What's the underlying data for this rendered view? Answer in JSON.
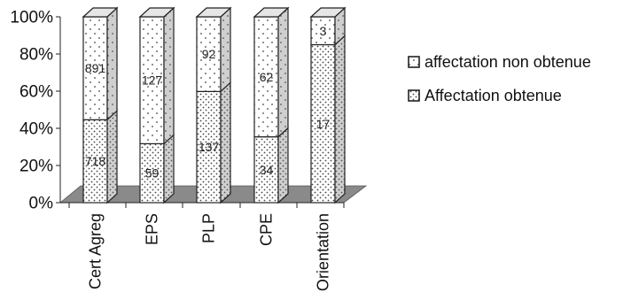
{
  "chart_data": {
    "type": "bar",
    "stacked": "percent",
    "categories": [
      "Cert Agreg",
      "EPS",
      "PLP",
      "CPE",
      "Orientation"
    ],
    "series": [
      {
        "name": "Affectation obtenue",
        "values": [
          718,
          59,
          137,
          34,
          17
        ],
        "pattern": "dense-dots"
      },
      {
        "name": "affectation non obtenue",
        "values": [
          891,
          127,
          92,
          62,
          3
        ],
        "pattern": "sparse-dots"
      }
    ],
    "y_ticks": [
      "0%",
      "20%",
      "40%",
      "60%",
      "80%",
      "100%"
    ],
    "ylim": [
      0,
      100
    ],
    "legend_order": [
      "affectation non obtenue",
      "Affectation obtenue"
    ],
    "legend_position": "right",
    "grid": false,
    "colors": {
      "floor": "#8a8a8a",
      "bar_front": "#ffffff",
      "bar_side": "#cfcfcf",
      "bar_top": "#e6e6e6",
      "outline": "#222222",
      "dots": "#444444"
    }
  }
}
